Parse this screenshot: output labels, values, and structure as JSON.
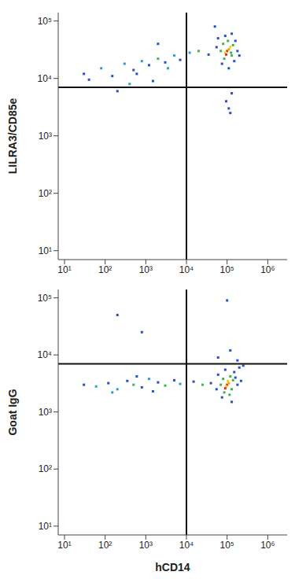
{
  "chart_data": [
    {
      "type": "scatter",
      "y_label": "LILRA3/CD85e",
      "log": true,
      "grid": false,
      "xlim": [
        7,
        3000000
      ],
      "ylim": [
        7,
        140000
      ],
      "xticks": [
        {
          "value": 10,
          "label": "10¹"
        },
        {
          "value": 100,
          "label": "10²"
        },
        {
          "value": 1000,
          "label": "10³"
        },
        {
          "value": 10000,
          "label": "10⁴"
        },
        {
          "value": 100000,
          "label": "10⁵"
        },
        {
          "value": 1000000,
          "label": "10⁶"
        }
      ],
      "yticks": [
        {
          "value": 10,
          "label": "10¹"
        },
        {
          "value": 100,
          "label": "10²"
        },
        {
          "value": 1000,
          "label": "10³"
        },
        {
          "value": 10000,
          "label": "10⁴"
        },
        {
          "value": 100000,
          "label": "10⁵"
        }
      ],
      "quadrant_x": 10000,
      "quadrant_y": 7000,
      "x": [
        100000,
        110000,
        90000,
        120000,
        95000,
        80000,
        130000,
        70000,
        140000,
        105000,
        85000,
        125000,
        60000,
        150000,
        180000,
        55000,
        160000,
        130000,
        75000,
        200000,
        110000,
        90000,
        110000,
        95000,
        130000,
        120000,
        30,
        80,
        150,
        300,
        500,
        800,
        1200,
        2000,
        3000,
        5000,
        7000,
        200,
        400,
        1500,
        12000,
        20000,
        35000,
        40,
        600,
        3500,
        2000,
        50000
      ],
      "y": [
        30000,
        32000,
        28000,
        35000,
        26000,
        40000,
        25000,
        30000,
        38000,
        45000,
        22000,
        28000,
        50000,
        20000,
        30000,
        35000,
        45000,
        60000,
        18000,
        25000,
        15000,
        55000,
        3000,
        4000,
        5500,
        2500,
        12000,
        15000,
        11000,
        18000,
        14000,
        20000,
        17000,
        22000,
        19000,
        25000,
        21000,
        6000,
        8000,
        9000,
        28000,
        30000,
        26000,
        9500,
        12000,
        15000,
        40000,
        80000
      ],
      "colors": [
        "#e8361c",
        "#f5a000",
        "#f5d000",
        "#f5d000",
        "#e8361c",
        "#3fb34f",
        "#3fb34f",
        "#3fb34f",
        "#3fb34f",
        "#3fb34f",
        "#3fb34f",
        "#3fb34f",
        "#2450c8",
        "#2450c8",
        "#2450c8",
        "#2450c8",
        "#2450c8",
        "#2450c8",
        "#2450c8",
        "#2450c8",
        "#2450c8",
        "#2450c8",
        "#2450c8",
        "#2450c8",
        "#2450c8",
        "#2450c8",
        "#2450c8",
        "#2a9fd6",
        "#2450c8",
        "#2a9fd6",
        "#2450c8",
        "#2a9fd6",
        "#2450c8",
        "#3fb34f",
        "#2450c8",
        "#2a9fd6",
        "#2450c8",
        "#2450c8",
        "#2a9fd6",
        "#2450c8",
        "#2a9fd6",
        "#3fb34f",
        "#2450c8",
        "#2450c8",
        "#2450c8",
        "#2a9fd6",
        "#2450c8",
        "#2450c8"
      ]
    },
    {
      "type": "scatter",
      "y_label": "Goat IgG",
      "x_label": "hCD14",
      "log": true,
      "grid": false,
      "xlim": [
        7,
        3000000
      ],
      "ylim": [
        7,
        140000
      ],
      "xticks": [
        {
          "value": 10,
          "label": "10¹"
        },
        {
          "value": 100,
          "label": "10²"
        },
        {
          "value": 1000,
          "label": "10³"
        },
        {
          "value": 10000,
          "label": "10⁴"
        },
        {
          "value": 100000,
          "label": "10⁵"
        },
        {
          "value": 1000000,
          "label": "10⁶"
        }
      ],
      "yticks": [
        {
          "value": 10,
          "label": "10¹"
        },
        {
          "value": 100,
          "label": "10²"
        },
        {
          "value": 1000,
          "label": "10³"
        },
        {
          "value": 10000,
          "label": "10⁴"
        },
        {
          "value": 100000,
          "label": "10⁵"
        }
      ],
      "quadrant_x": 10000,
      "quadrant_y": 7000,
      "x": [
        100000,
        110000,
        95000,
        105000,
        90000,
        80000,
        130000,
        70000,
        140000,
        120000,
        85000,
        115000,
        60000,
        150000,
        180000,
        55000,
        160000,
        200000,
        75000,
        130000,
        220000,
        90000,
        250000,
        30,
        60,
        120,
        200,
        350,
        500,
        800,
        1200,
        2000,
        3000,
        5000,
        7000,
        15000,
        25000,
        40000,
        150,
        600,
        1500,
        200,
        800,
        100000,
        120000,
        180000,
        60000
      ],
      "y": [
        3000,
        3200,
        2800,
        3500,
        2600,
        3800,
        2500,
        3000,
        3600,
        4200,
        2200,
        2000,
        4500,
        5000,
        3000,
        2500,
        4000,
        6000,
        1800,
        1500,
        3500,
        5500,
        6500,
        3000,
        2800,
        3200,
        2500,
        3500,
        3000,
        2700,
        3800,
        3300,
        2900,
        3600,
        3100,
        3400,
        3000,
        3200,
        2200,
        4200,
        2300,
        50000,
        25000,
        90000,
        12000,
        8000,
        9000
      ],
      "colors": [
        "#e8361c",
        "#f5a000",
        "#f5d000",
        "#f5d000",
        "#e8361c",
        "#3fb34f",
        "#3fb34f",
        "#3fb34f",
        "#3fb34f",
        "#3fb34f",
        "#3fb34f",
        "#3fb34f",
        "#2450c8",
        "#2450c8",
        "#2450c8",
        "#2450c8",
        "#2450c8",
        "#2450c8",
        "#2450c8",
        "#2450c8",
        "#2450c8",
        "#2450c8",
        "#2450c8",
        "#2450c8",
        "#2a9fd6",
        "#2450c8",
        "#2a9fd6",
        "#2450c8",
        "#3fb34f",
        "#2450c8",
        "#2a9fd6",
        "#2450c8",
        "#3fb34f",
        "#2450c8",
        "#2a9fd6",
        "#2450c8",
        "#3fb34f",
        "#2450c8",
        "#2a9fd6",
        "#2450c8",
        "#2450c8",
        "#2450c8",
        "#2450c8",
        "#2450c8",
        "#2450c8",
        "#2450c8",
        "#2450c8"
      ]
    }
  ]
}
